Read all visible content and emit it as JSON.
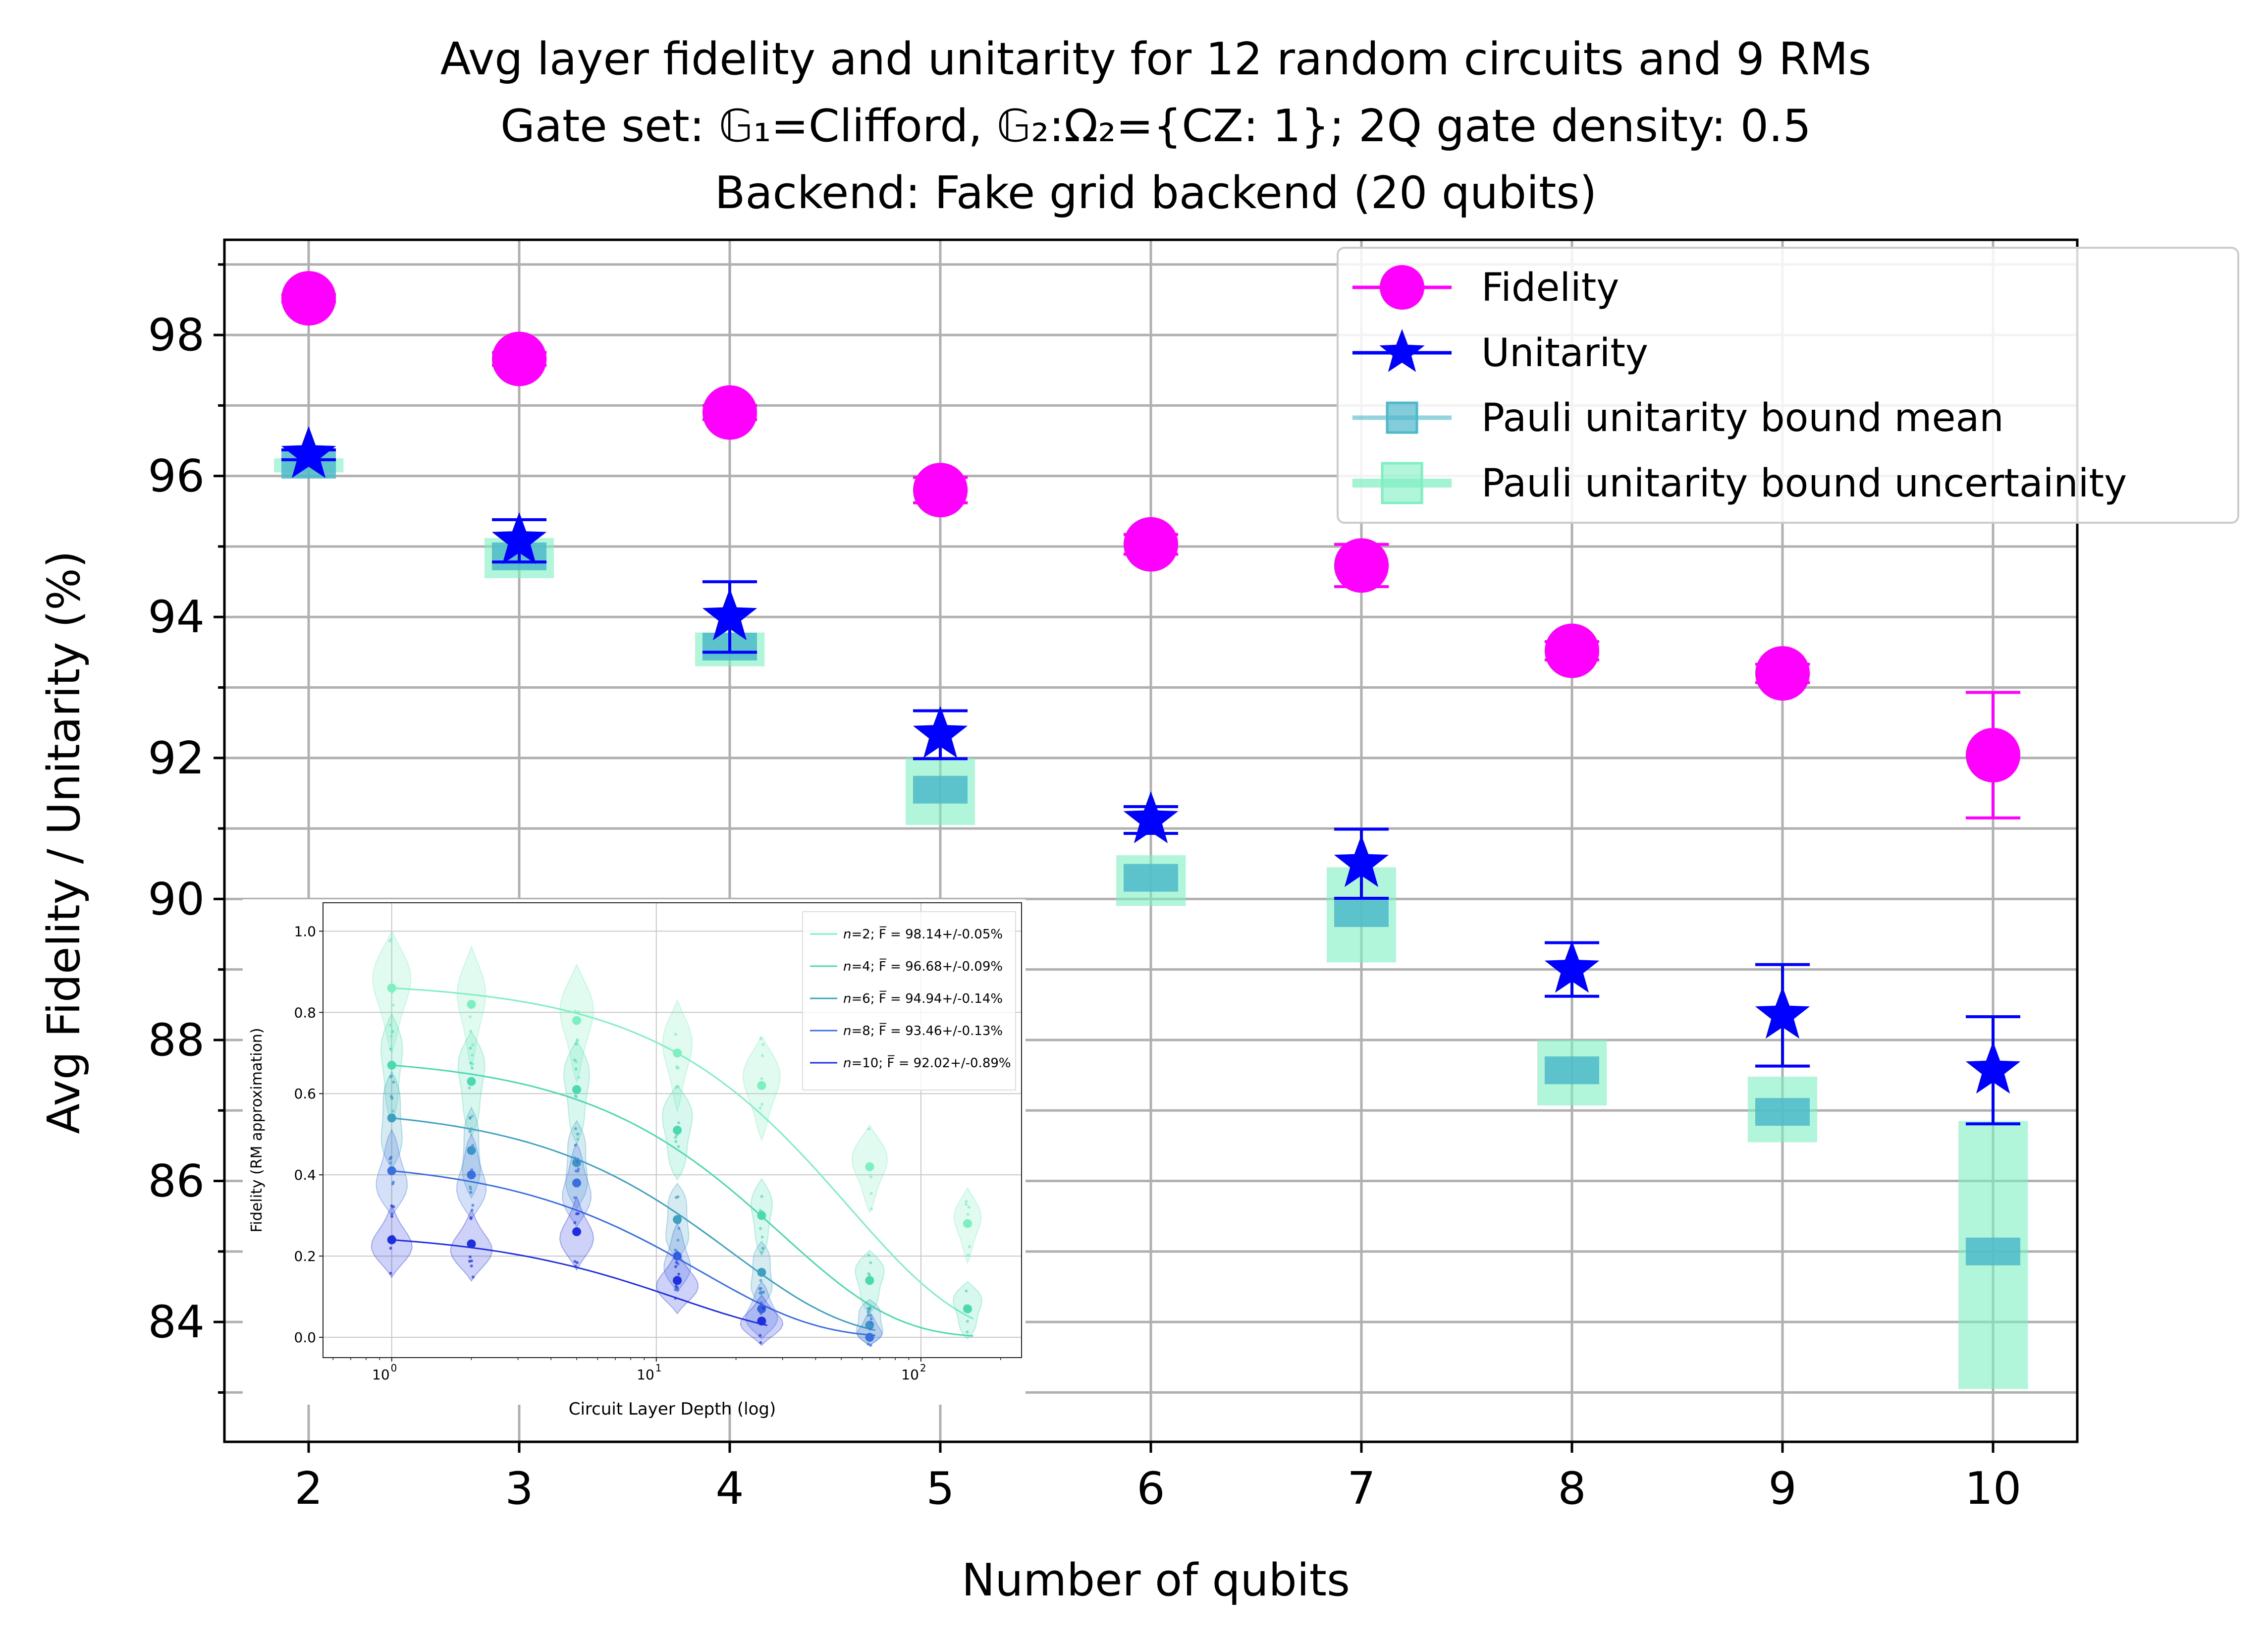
{
  "chart_data": [
    {
      "type": "scatter",
      "title_lines": [
        "Avg layer fidelity and unitarity for 12 random circuits and 9 RMs",
        "Gate set: 𝔾₁=Clifford, 𝔾₂:Ω₂={CZ: 1}; 2Q gate density: 0.5",
        "Backend: Fake grid backend (20 qubits)"
      ],
      "xlabel": "Number of qubits",
      "ylabel": "Avg Fidelity / Unitarity (%)",
      "x": [
        2,
        3,
        4,
        5,
        6,
        7,
        8,
        9,
        10
      ],
      "xlim": [
        1.6,
        10.4
      ],
      "ylim": [
        82.3,
        99.35
      ],
      "yticks": [
        84,
        86,
        88,
        90,
        92,
        94,
        96,
        98
      ],
      "xticks": [
        2,
        3,
        4,
        5,
        6,
        7,
        8,
        9,
        10
      ],
      "legend": {
        "placement": "upper right",
        "entries": [
          "Fidelity",
          "Unitarity",
          "Pauli unitarity bound mean",
          "Pauli unitarity bound uncertainity"
        ]
      },
      "series": [
        {
          "name": "Fidelity",
          "marker": "circle",
          "color": "#ff00ff",
          "values": [
            98.52,
            97.66,
            96.9,
            95.8,
            95.03,
            94.73,
            93.52,
            93.2,
            92.04
          ],
          "err": [
            0.05,
            0.09,
            0.1,
            0.18,
            0.14,
            0.3,
            0.13,
            0.13,
            0.89
          ]
        },
        {
          "name": "Unitarity",
          "marker": "star",
          "color": "#0000ff",
          "values": [
            96.3,
            95.08,
            94.0,
            92.33,
            91.12,
            90.5,
            89.0,
            88.35,
            87.57
          ],
          "err": [
            0.07,
            0.3,
            0.5,
            0.34,
            0.19,
            0.49,
            0.38,
            0.72,
            0.76
          ]
        },
        {
          "name": "Pauli unitarity bound mean",
          "color": "#4db8c9",
          "values": [
            96.16,
            94.86,
            93.58,
            91.55,
            90.3,
            89.8,
            87.57,
            86.98,
            85.0
          ]
        },
        {
          "name": "Pauli unitarity bound uncertainity",
          "color": "#7defc1",
          "low": [
            96.05,
            94.55,
            93.3,
            91.05,
            89.9,
            89.1,
            87.07,
            86.55,
            83.05
          ],
          "high": [
            96.25,
            95.12,
            93.78,
            92.0,
            90.62,
            90.45,
            88.0,
            87.48,
            86.85
          ]
        }
      ]
    },
    {
      "type": "violin",
      "xlabel": "Circuit Layer Depth (log)",
      "ylabel": "Fidelity (RM approximation)",
      "xscale": "log",
      "xlim": [
        0.55,
        240
      ],
      "ylim": [
        -0.05,
        1.07
      ],
      "yticks": [
        0.0,
        0.2,
        0.4,
        0.6,
        0.8,
        1.0
      ],
      "ytick_labels": [
        "0.0",
        "0.2",
        "0.4",
        "0.6",
        "0.8",
        "1.0"
      ],
      "xticks": [
        1,
        10,
        100
      ],
      "xtick_base": "10",
      "xtick_exponents": [
        "0",
        "1",
        "2"
      ],
      "series": [
        {
          "name": "n=2",
          "label_n": "n",
          "label_rest": "=2; F̅ = 98.14+/-0.05%",
          "color": "#7defc1",
          "F": 0.9814,
          "depths": [
            1,
            2,
            5,
            12,
            25,
            64,
            150
          ],
          "means": [
            0.86,
            0.82,
            0.78,
            0.7,
            0.62,
            0.42,
            0.28
          ]
        },
        {
          "name": "n=4",
          "label_n": "n",
          "label_rest": "=4; F̅ = 96.68+/-0.09%",
          "color": "#4dd9b0",
          "F": 0.9668,
          "depths": [
            1,
            2,
            5,
            12,
            25,
            64,
            150
          ],
          "means": [
            0.67,
            0.63,
            0.61,
            0.51,
            0.3,
            0.14,
            0.07
          ]
        },
        {
          "name": "n=6",
          "label_n": "n",
          "label_rest": "=6; F̅ = 94.94+/-0.14%",
          "color": "#3fa0c0",
          "F": 0.9494,
          "depths": [
            1,
            2,
            5,
            12,
            25,
            64
          ],
          "means": [
            0.54,
            0.46,
            0.43,
            0.29,
            0.16,
            0.03
          ]
        },
        {
          "name": "n=8",
          "label_n": "n",
          "label_rest": "=8; F̅ = 93.46+/-0.13%",
          "color": "#3a6fe0",
          "F": 0.9346,
          "depths": [
            1,
            2,
            5,
            12,
            25,
            64
          ],
          "means": [
            0.41,
            0.4,
            0.38,
            0.2,
            0.07,
            0.0
          ]
        },
        {
          "name": "n=10",
          "label_n": "n",
          "label_rest": "=10; F̅ = 92.02+/-0.89%",
          "color": "#1f2fe0",
          "F": 0.9202,
          "depths": [
            1,
            2,
            5,
            12,
            25
          ],
          "means": [
            0.24,
            0.23,
            0.26,
            0.14,
            0.04
          ]
        }
      ]
    }
  ]
}
